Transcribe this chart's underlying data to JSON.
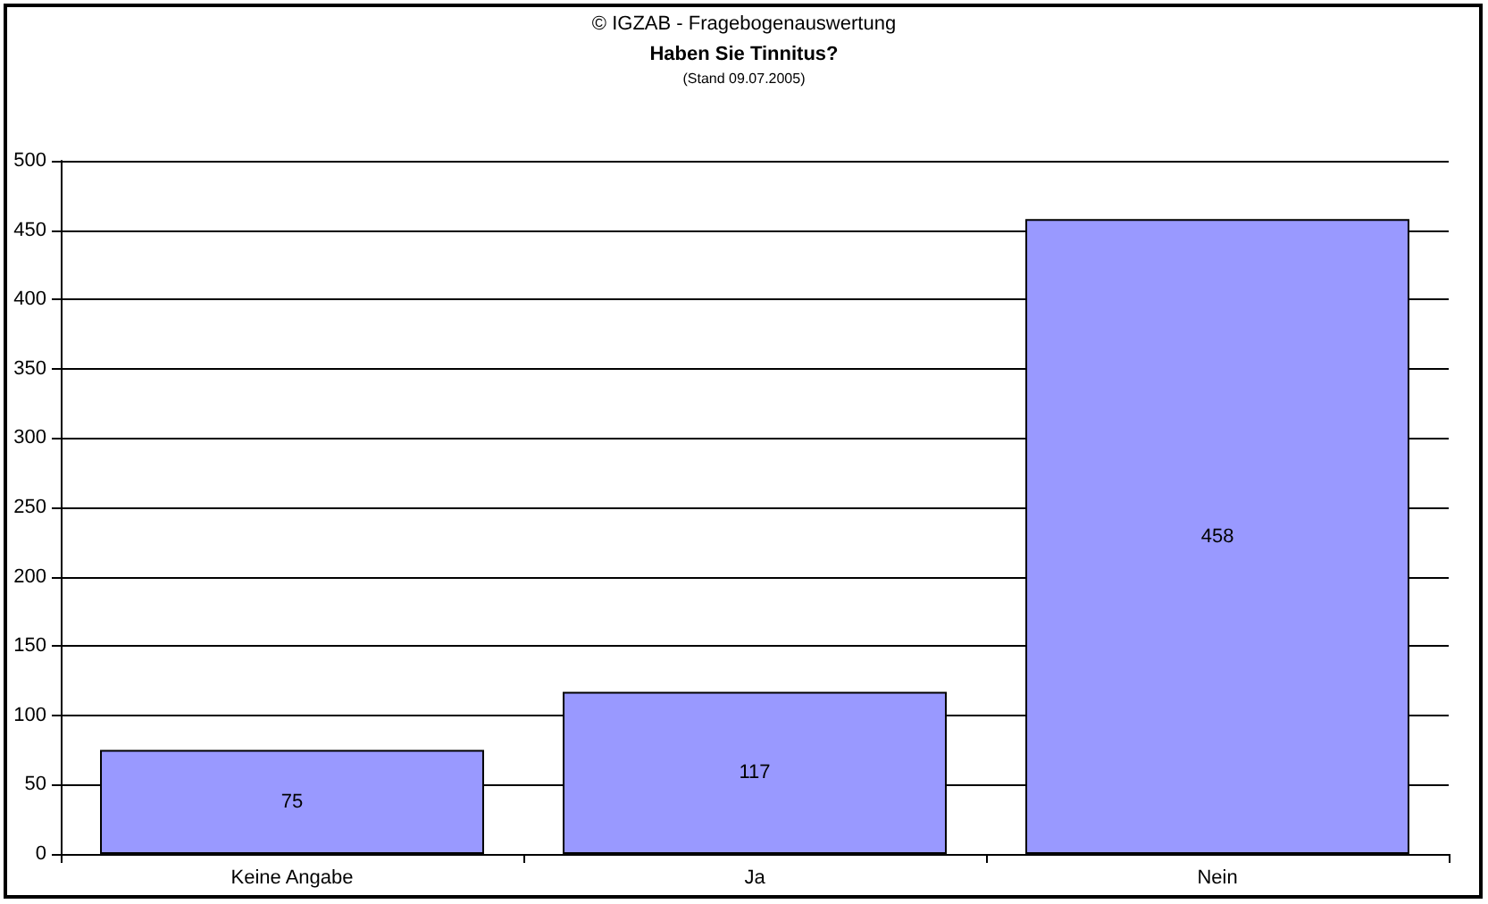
{
  "chart_data": {
    "type": "bar",
    "title": "Haben Sie Tinnitus?",
    "subtitle": "(Stand 09.07.2005)",
    "annotations": [
      "© IGZAB - Fragebogenauswertung"
    ],
    "categories": [
      "Keine Angabe",
      "Ja",
      "Nein"
    ],
    "values": [
      75,
      117,
      458
    ],
    "color": "#9999ff",
    "ylim": [
      0,
      500
    ],
    "yticks": [
      0,
      50,
      100,
      150,
      200,
      250,
      300,
      350,
      400,
      450,
      500
    ],
    "grid": "y",
    "data_labels": true
  }
}
